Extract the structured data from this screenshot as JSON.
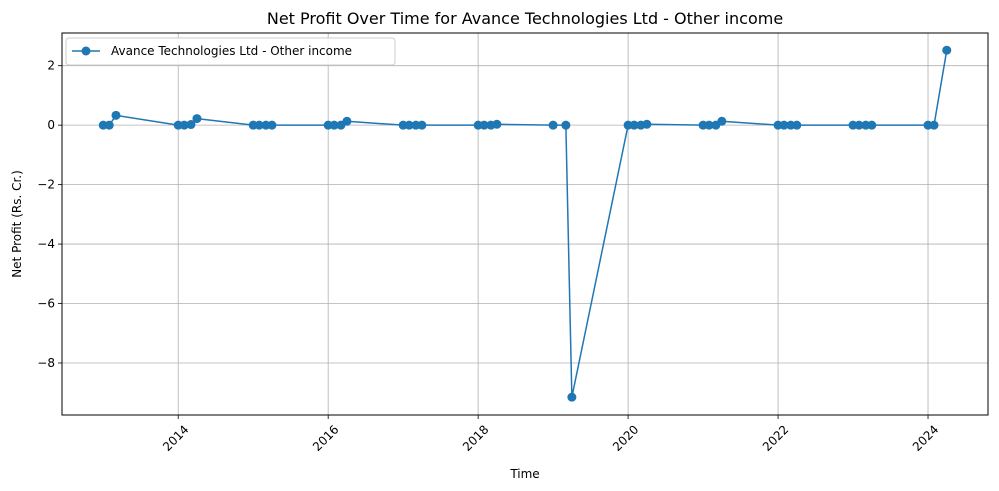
{
  "chart_data": {
    "type": "line",
    "title": "Net Profit Over Time for Avance Technologies Ltd - Other income",
    "xlabel": "Time",
    "ylabel": "Net Profit (Rs. Cr.)",
    "xlim": [
      2012.45,
      2024.8
    ],
    "ylim": [
      -9.75,
      3.1
    ],
    "x_ticks": [
      2014,
      2016,
      2018,
      2020,
      2022,
      2024
    ],
    "x_tick_labels": [
      "2014",
      "2016",
      "2018",
      "2020",
      "2022",
      "2024"
    ],
    "y_ticks": [
      2,
      0,
      -2,
      -4,
      -6,
      -8
    ],
    "y_tick_labels": [
      "2",
      "0",
      "−2",
      "−4",
      "−6",
      "−8"
    ],
    "grid": true,
    "legend_position": "upper-left",
    "color": "#1f77b4",
    "series": [
      {
        "name": "Avance Technologies Ltd - Other income",
        "x": [
          2013.0,
          2013.08,
          2013.17,
          2014.0,
          2014.08,
          2014.17,
          2014.25,
          2015.0,
          2015.08,
          2015.17,
          2015.25,
          2016.0,
          2016.08,
          2016.17,
          2016.25,
          2017.0,
          2017.08,
          2017.17,
          2017.25,
          2018.0,
          2018.08,
          2018.17,
          2018.25,
          2019.0,
          2019.17,
          2019.25,
          2020.0,
          2020.08,
          2020.17,
          2020.25,
          2021.0,
          2021.08,
          2021.17,
          2021.25,
          2022.0,
          2022.08,
          2022.17,
          2022.25,
          2023.0,
          2023.08,
          2023.17,
          2023.25,
          2024.0,
          2024.08,
          2024.25
        ],
        "y": [
          0.0,
          0.0,
          0.33,
          0.0,
          0.0,
          0.02,
          0.22,
          0.0,
          0.0,
          0.0,
          0.0,
          0.0,
          0.0,
          0.0,
          0.13,
          0.0,
          0.0,
          0.0,
          0.0,
          0.0,
          0.0,
          0.0,
          0.03,
          0.0,
          0.0,
          -9.15,
          0.0,
          0.0,
          0.0,
          0.03,
          0.0,
          0.0,
          0.0,
          0.13,
          0.0,
          0.0,
          0.0,
          0.0,
          0.0,
          0.0,
          0.0,
          0.0,
          0.0,
          0.0,
          2.52
        ]
      }
    ]
  }
}
